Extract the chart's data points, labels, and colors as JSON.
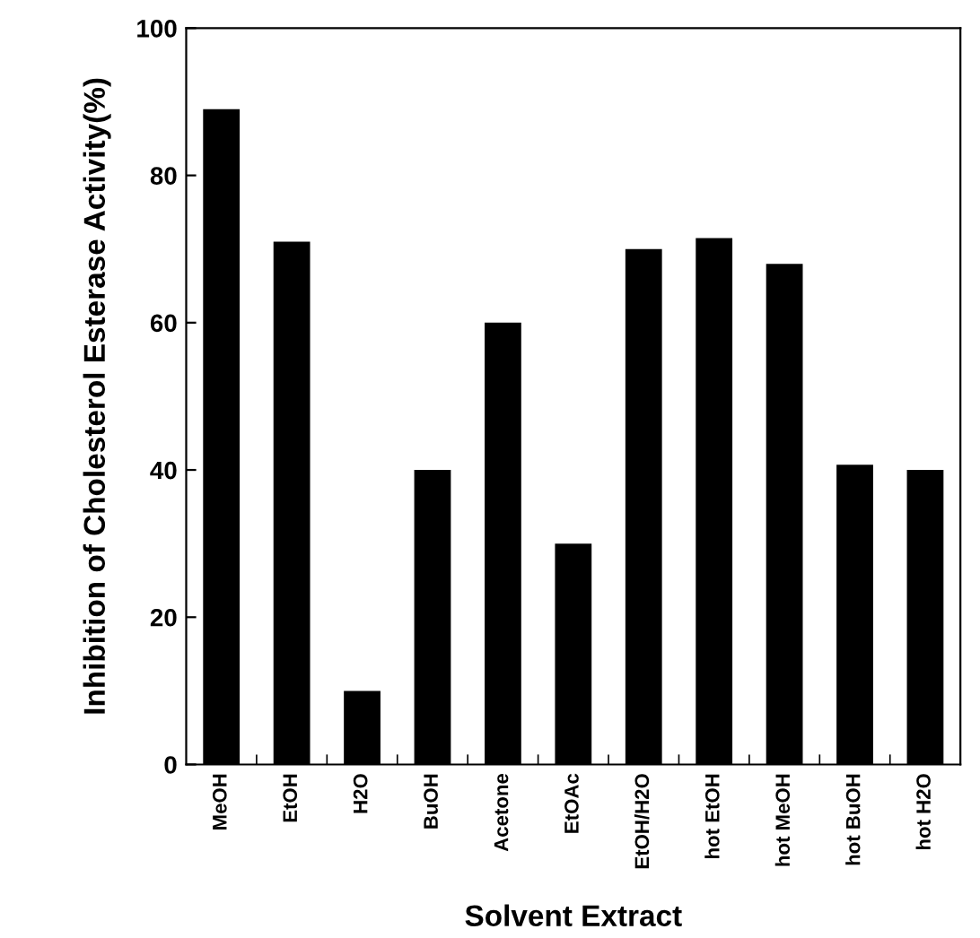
{
  "chart_data": {
    "type": "bar",
    "xlabel": "Solvent Extract",
    "ylabel": "Inhibition of Cholesterol Esterase Activity(%)",
    "categories": [
      "MeOH",
      "EtOH",
      "H2O",
      "BuOH",
      "Acetone",
      "EtOAc",
      "EtOH/H2O",
      "hot EtOH",
      "hot MeOH",
      "hot BuOH",
      "hot H2O"
    ],
    "values": [
      89,
      71,
      10,
      40,
      60,
      30,
      70,
      71.5,
      68,
      40.7,
      40
    ],
    "color": "#000000",
    "ylim": [
      0,
      100
    ],
    "yticks": [
      0,
      20,
      40,
      60,
      80,
      100
    ],
    "grid": false,
    "legend": false
  }
}
